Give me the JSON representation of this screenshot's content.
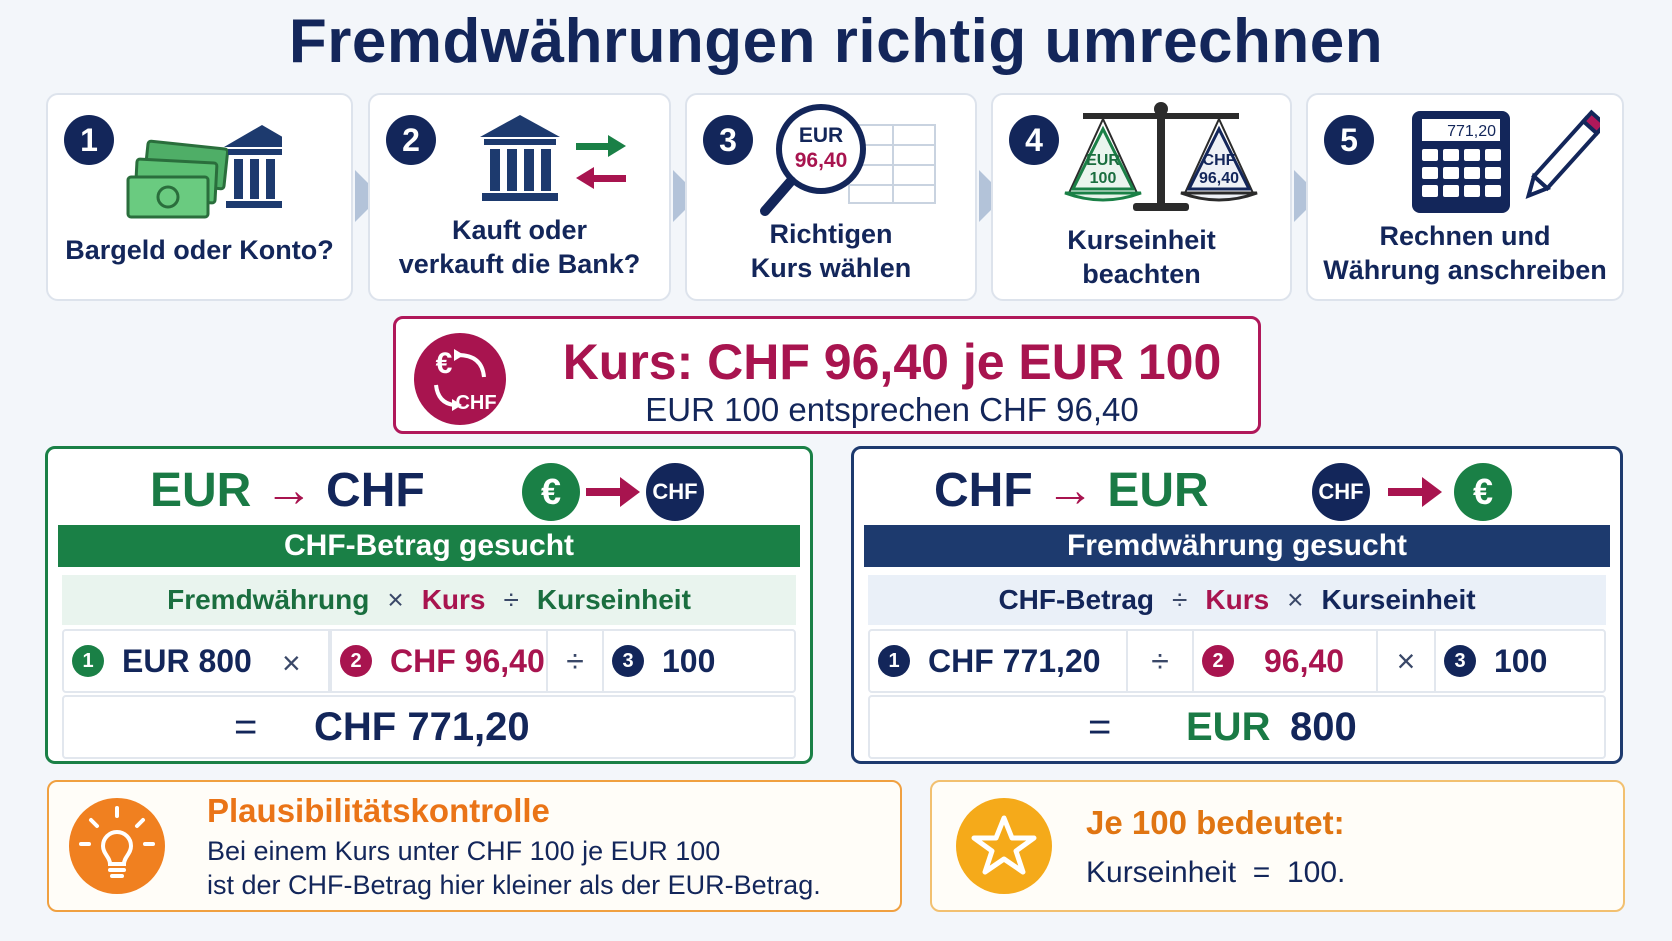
{
  "title": "Fremdwährungen richtig umrechnen",
  "steps": [
    {
      "num": "1",
      "label_line1": "Bargeld oder Konto?",
      "label_line2": ""
    },
    {
      "num": "2",
      "label_line1": "Kauft oder",
      "label_line2": "verkauft die Bank?"
    },
    {
      "num": "3",
      "label_line1": "Richtigen",
      "label_line2": "Kurs wählen",
      "art_top": "EUR",
      "art_bottom": "96,40"
    },
    {
      "num": "4",
      "label_line1": "Kurseinheit",
      "label_line2": "beachten",
      "art_left_top": "EUR",
      "art_left_bottom": "100",
      "art_right_top": "CHF",
      "art_right_bottom": "96,40"
    },
    {
      "num": "5",
      "label_line1": "Rechnen und",
      "label_line2": "Währung anschreiben",
      "art_display": "771,20"
    }
  ],
  "rate": {
    "main": "Kurs: CHF 96,40 je EUR 100",
    "sub": "EUR 100 entsprechen CHF 96,40",
    "icon_symbol": "€",
    "icon_text": "CHF"
  },
  "eur_to_chf": {
    "title_from": "EUR",
    "title_arrow": "→",
    "title_to": "CHF",
    "coin_from": "€",
    "coin_to": "CHF",
    "bar": "CHF-Betrag gesucht",
    "formula": {
      "t1": "Fremdwährung",
      "op1": "×",
      "t2": "Kurs",
      "op2": "÷",
      "t3": "Kurseinheit"
    },
    "values": {
      "n1": "1",
      "v1": "EUR 800",
      "op1": "×",
      "n2": "2",
      "v2": "CHF 96,40",
      "op2": "÷",
      "n3": "3",
      "v3": "100"
    },
    "result": {
      "eq": "=",
      "value": "CHF 771,20"
    }
  },
  "chf_to_eur": {
    "title_from": "CHF",
    "title_arrow": "→",
    "title_to": "EUR",
    "coin_from": "CHF",
    "coin_to": "€",
    "bar": "Fremdwährung gesucht",
    "formula": {
      "t1": "CHF-Betrag",
      "op1": "÷",
      "t2": "Kurs",
      "op2": "×",
      "t3": "Kurseinheit"
    },
    "values": {
      "n1": "1",
      "v1": "CHF 771,20",
      "op1": "÷",
      "n2": "2",
      "v2": "96,40",
      "op2": "×",
      "n3": "3",
      "v3": "100"
    },
    "result": {
      "eq": "=",
      "currency": "EUR",
      "value": "800"
    }
  },
  "plausibility": {
    "heading": "Plausibilitätskontrolle",
    "line1": "Bei einem Kurs unter CHF 100 je EUR 100",
    "line2": "ist der CHF-Betrag hier kleiner als der EUR-Betrag."
  },
  "unit_note": {
    "heading": "Je 100 bedeutet:",
    "line1": "Kurseinheit  =  100."
  },
  "colors": {
    "navy": "#13265a",
    "green": "#1a8046",
    "magenta": "#a8144f",
    "orange": "#f08020",
    "gold": "#f5aa1a"
  }
}
